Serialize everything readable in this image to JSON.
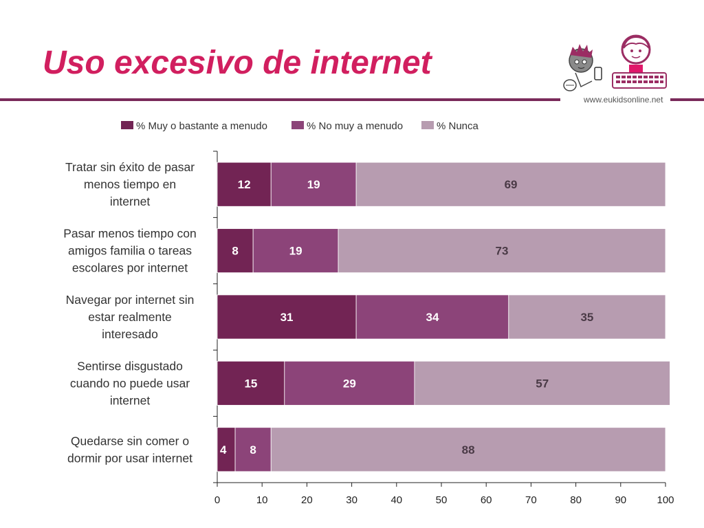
{
  "slide": {
    "title": "Uso excesivo de internet",
    "website": "www.eukidsonline.net"
  },
  "colors": {
    "title": "#d11f5f",
    "rule": "#7a2a5a",
    "series": [
      "#722454",
      "#8c4479",
      "#b79cb0"
    ]
  },
  "icons": [
    "boy-with-phone-icon",
    "girl-at-keyboard-icon"
  ],
  "chart_data": {
    "type": "bar",
    "orientation": "horizontal",
    "stacked": true,
    "title": "",
    "xlabel": "",
    "ylabel": "",
    "xlim": [
      0,
      100
    ],
    "xticks": [
      0,
      10,
      20,
      30,
      40,
      50,
      60,
      70,
      80,
      90,
      100
    ],
    "grid": false,
    "legend_position": "top",
    "categories": [
      "Tratar sin éxito de pasar menos tiempo en internet",
      "Pasar menos tiempo con amigos familia o tareas escolares por internet",
      "Navegar por internet sin estar realmente interesado",
      "Sentirse disgustado cuando no puede usar internet",
      "Quedarse sin comer o dormir por usar internet"
    ],
    "category_lines": [
      [
        "Tratar sin éxito de pasar",
        "menos tiempo en",
        "internet"
      ],
      [
        "Pasar menos tiempo con",
        "amigos familia o tareas",
        "escolares por internet"
      ],
      [
        "Navegar por internet sin",
        "estar realmente",
        "interesado"
      ],
      [
        "Sentirse disgustado",
        "cuando no puede usar",
        "internet"
      ],
      [
        "Quedarse sin comer o",
        "dormir por usar internet"
      ]
    ],
    "series": [
      {
        "name": "% Muy o bastante a menudo",
        "values": [
          12,
          8,
          31,
          15,
          4
        ]
      },
      {
        "name": "% No muy a menudo",
        "values": [
          19,
          19,
          34,
          29,
          8
        ]
      },
      {
        "name": "% Nunca",
        "values": [
          69,
          73,
          35,
          57,
          88
        ]
      }
    ]
  }
}
